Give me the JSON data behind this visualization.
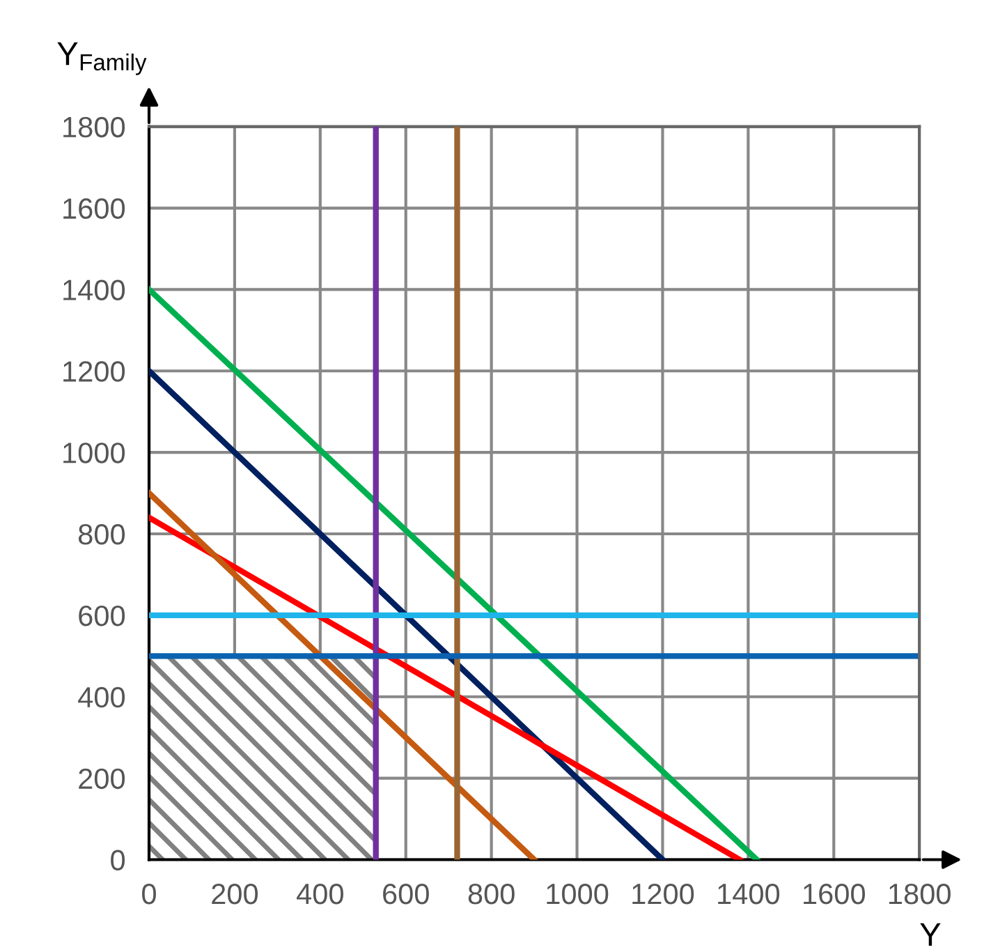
{
  "chart_data": {
    "type": "line",
    "ylabel": "Y$_{Family}$",
    "xlabel": "Y",
    "xlim": [
      0,
      1800
    ],
    "ylim": [
      0,
      1800
    ],
    "xticks": [
      0,
      200,
      400,
      600,
      800,
      1000,
      1200,
      1400,
      1600,
      1800
    ],
    "yticks": [
      0,
      200,
      400,
      600,
      800,
      1000,
      1200,
      1400,
      1600,
      1800
    ],
    "grid": true,
    "legend": false,
    "marker": "none",
    "line_style": "solid",
    "series": [
      {
        "type": "area",
        "color": "#808080",
        "x": [
          0,
          530
        ],
        "values": [
          500,
          500
        ]
      },
      {
        "color": "#00b050",
        "x": [
          0,
          1420
        ],
        "values": [
          1400,
          0
        ]
      },
      {
        "color": "#002060",
        "x": [
          0,
          1200
        ],
        "values": [
          1200,
          0
        ]
      },
      {
        "color": "#ff0000",
        "x": [
          0,
          1380
        ],
        "values": [
          840,
          0
        ]
      },
      {
        "color": "#c55a11",
        "x": [
          0,
          900
        ],
        "values": [
          900,
          0
        ]
      },
      {
        "color": "#7030a0",
        "x": [
          530,
          530
        ],
        "values": [
          0,
          1800
        ]
      },
      {
        "color": "#996633",
        "x": [
          720,
          720
        ],
        "values": [
          0,
          1800
        ]
      },
      {
        "color": "#1fb5ea",
        "x": [
          0,
          1790
        ],
        "values": [
          600,
          600
        ]
      },
      {
        "color": "#0b62b0",
        "x": [
          0,
          1790
        ],
        "values": [
          500,
          500
        ]
      }
    ]
  }
}
